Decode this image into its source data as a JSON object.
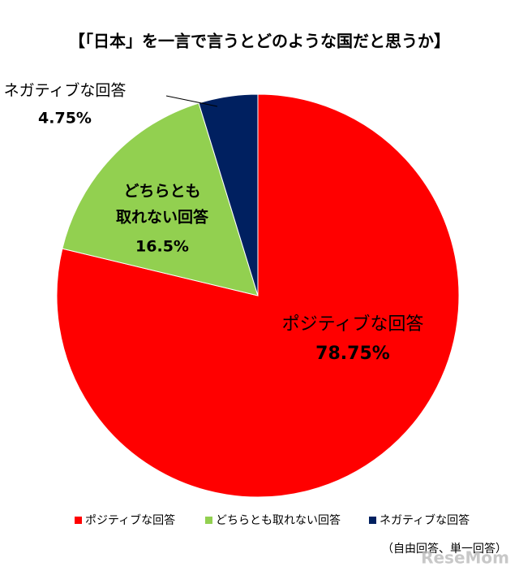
{
  "chart_data": {
    "type": "pie",
    "title": "【「日本」を一言で言うとどのような国だと思うか】",
    "categories": [
      "ポジティブな回答",
      "どちらとも取れない回答",
      "ネガティブな回答"
    ],
    "slice_labels": [
      [
        "ポジティブな回答"
      ],
      [
        "どちらとも",
        "取れない回答"
      ],
      [
        "ネガティブな回答"
      ]
    ],
    "values": [
      78.75,
      16.5,
      4.75
    ],
    "value_labels": [
      "78.75%",
      "16.5%",
      "4.75%"
    ],
    "colors": [
      "#ff0000",
      "#92d050",
      "#002060"
    ],
    "legend": "bottom",
    "note": "（自由回答、単一回答）",
    "watermark": "ReseMom"
  }
}
